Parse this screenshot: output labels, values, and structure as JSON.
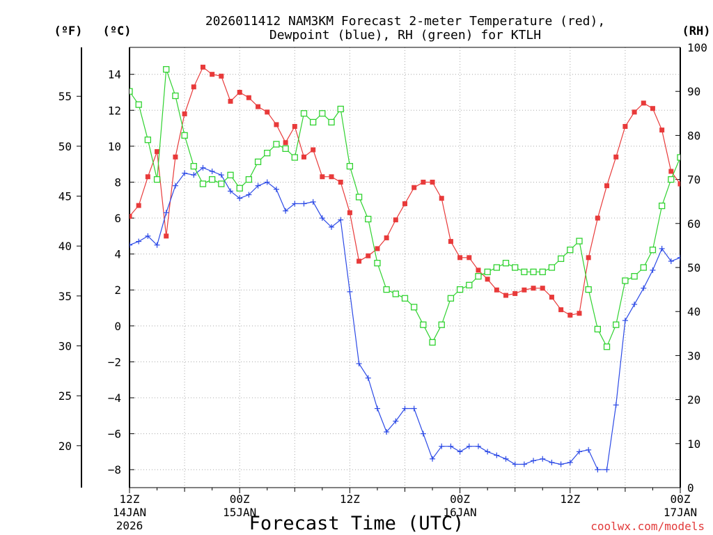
{
  "chart_data": {
    "type": "line",
    "title_line1": "2026011412 NAM3KM Forecast 2-meter Temperature (red),",
    "title_line2": "Dewpoint (blue), RH (green) for KTLH",
    "xlabel": "Forecast Time (UTC)",
    "credit": "coolwx.com/models",
    "unit_f": "(ºF)",
    "unit_c": "(ºC)",
    "unit_rh": "(RH)",
    "x_hours_range": [
      0,
      60
    ],
    "x_ticks": [
      {
        "hour": 0,
        "l1": "12Z",
        "l2": "14JAN",
        "l3": "2026"
      },
      {
        "hour": 12,
        "l1": "00Z",
        "l2": "15JAN",
        "l3": ""
      },
      {
        "hour": 24,
        "l1": "12Z",
        "l2": "",
        "l3": ""
      },
      {
        "hour": 36,
        "l1": "00Z",
        "l2": "16JAN",
        "l3": ""
      },
      {
        "hour": 48,
        "l1": "12Z",
        "l2": "",
        "l3": ""
      },
      {
        "hour": 60,
        "l1": "00Z",
        "l2": "17JAN",
        "l3": ""
      }
    ],
    "y_c_range": [
      -9.0,
      15.5
    ],
    "y_c_ticks": [
      "14",
      "12",
      "10",
      "8",
      "6",
      "4",
      "2",
      "0",
      "−2",
      "−4",
      "−6",
      "−8"
    ],
    "y_c_values": [
      14,
      12,
      10,
      8,
      6,
      4,
      2,
      0,
      -2,
      -4,
      -6,
      -8
    ],
    "y_f_ticks": [
      "55",
      "50",
      "45",
      "40",
      "35",
      "30",
      "25",
      "20"
    ],
    "y_f_values": [
      55,
      50,
      45,
      40,
      35,
      30,
      25,
      20
    ],
    "y_rh_range": [
      0,
      100
    ],
    "y_rh_ticks": [
      "100",
      "90",
      "80",
      "70",
      "60",
      "50",
      "40",
      "30",
      "20",
      "10",
      "0"
    ],
    "y_rh_values": [
      100,
      90,
      80,
      70,
      60,
      50,
      40,
      30,
      20,
      10,
      0
    ],
    "series": [
      {
        "name": "Temperature (red)",
        "color": "#e83a3a",
        "marker": "filled-square",
        "axis": "c",
        "values": [
          6.1,
          6.7,
          8.3,
          9.7,
          5.0,
          9.4,
          11.8,
          13.3,
          14.4,
          14.0,
          13.9,
          12.5,
          13.0,
          12.7,
          12.2,
          11.9,
          11.2,
          10.2,
          11.1,
          9.4,
          9.8,
          8.3,
          8.3,
          8.0,
          6.3,
          3.6,
          3.9,
          4.3,
          4.9,
          5.9,
          6.8,
          7.7,
          8.0,
          8.0,
          7.1,
          4.7,
          3.8,
          3.8,
          3.1,
          2.6,
          2.0,
          1.7,
          1.8,
          2.0,
          2.1,
          2.1,
          1.6,
          0.9,
          0.6,
          0.7,
          3.8,
          6.0,
          7.8,
          9.4,
          11.1,
          11.9,
          12.4,
          12.1,
          10.9,
          8.6,
          7.9
        ]
      },
      {
        "name": "Dewpoint (blue)",
        "color": "#2b49e6",
        "marker": "plus",
        "axis": "c",
        "values": [
          4.5,
          4.7,
          5.0,
          4.5,
          6.3,
          7.8,
          8.5,
          8.4,
          8.8,
          8.6,
          8.4,
          7.5,
          7.1,
          7.3,
          7.8,
          8.0,
          7.6,
          6.4,
          6.8,
          6.8,
          6.9,
          6.0,
          5.5,
          5.9,
          1.9,
          -2.1,
          -2.9,
          -4.6,
          -5.9,
          -5.3,
          -4.6,
          -4.6,
          -6.0,
          -7.4,
          -6.7,
          -6.7,
          -7.0,
          -6.7,
          -6.7,
          -7.0,
          -7.2,
          -7.4,
          -7.7,
          -7.7,
          -7.5,
          -7.4,
          -7.6,
          -7.7,
          -7.6,
          -7.0,
          -6.9,
          -8.0,
          -8.0,
          -4.4,
          0.3,
          1.2,
          2.1,
          3.1,
          4.3,
          3.6,
          3.8
        ]
      },
      {
        "name": "RH (green)",
        "color": "#2fd22f",
        "marker": "open-square",
        "axis": "rh",
        "values": [
          90,
          87,
          79,
          70,
          95,
          89,
          80,
          73,
          69,
          70,
          69,
          71,
          68,
          70,
          74,
          76,
          78,
          77,
          75,
          85,
          83,
          85,
          83,
          86,
          73,
          66,
          61,
          51,
          45,
          44,
          43,
          41,
          37,
          33,
          37,
          43,
          45,
          46,
          48,
          49,
          50,
          51,
          50,
          49,
          49,
          49,
          50,
          52,
          54,
          56,
          45,
          36,
          32,
          37,
          47,
          48,
          50,
          54,
          64,
          70,
          75
        ]
      }
    ]
  }
}
